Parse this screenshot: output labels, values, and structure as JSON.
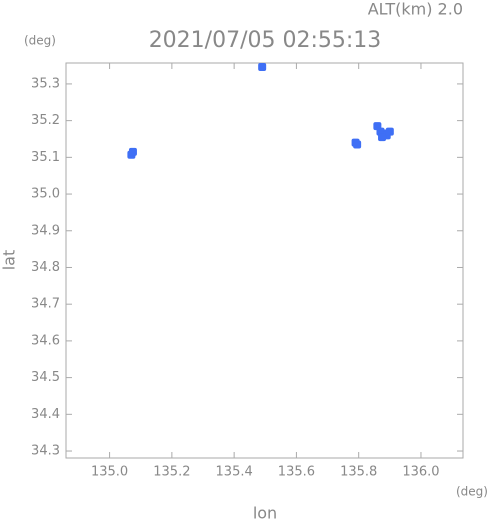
{
  "chart_data": {
    "type": "scatter",
    "title": "2021/07/05 02:55:13",
    "subtitle": "ALT(km) 2.0",
    "x_label": "lon",
    "y_label": "lat",
    "x_unit": "(deg)",
    "y_unit": "(deg)",
    "x": [
      135.07,
      135.075,
      135.79,
      135.795,
      135.86,
      135.87,
      135.88,
      135.89,
      135.875,
      135.9,
      135.49
    ],
    "y": [
      35.107,
      35.115,
      35.14,
      35.135,
      35.185,
      35.17,
      35.165,
      35.16,
      35.155,
      35.17,
      35.346
    ],
    "color": "#3f6ff5",
    "xlim": [
      134.86,
      136.135
    ],
    "ylim": [
      34.281,
      35.357
    ],
    "xticks": [
      {
        "value": 135.0,
        "label": "135.0"
      },
      135.2,
      135.4,
      135.6,
      135.8,
      {
        "value": 136.0,
        "label": "136.0"
      }
    ],
    "yticks": [
      34.3,
      34.4,
      34.5,
      34.6,
      34.7,
      34.8,
      34.9,
      {
        "value": 35.0,
        "label": "35.0"
      },
      35.1,
      35.2,
      35.3
    ]
  }
}
